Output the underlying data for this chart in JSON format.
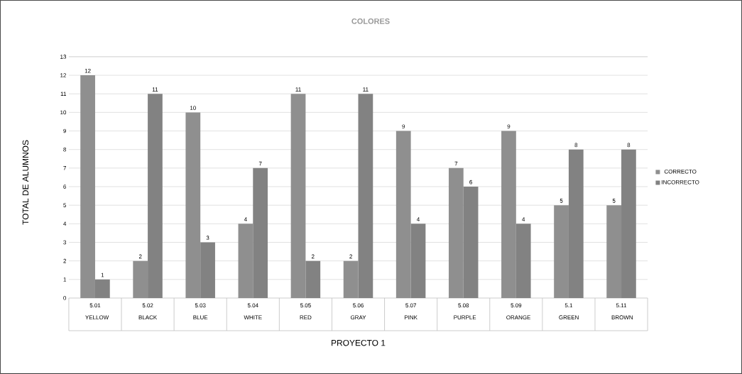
{
  "chart_data": {
    "type": "bar",
    "title": "COLORES",
    "xlabel": "PROYECTO 1",
    "ylabel": "TOTAL DE ALUMNOS",
    "categories": [
      "5.01 YELLOW",
      "5.02 BLACK",
      "5.03 BLUE",
      "5.04 WHITE",
      "5.05 RED",
      "5.06 GRAY",
      "5.07 PINK",
      "5.08 PURPLE",
      "5.09 ORANGE",
      "5.1 GREEN",
      "5.11 BROWN"
    ],
    "series": [
      {
        "name": "CORRECTO",
        "color": "#8f8f8f",
        "values": [
          12,
          2,
          10,
          4,
          11,
          2,
          9,
          7,
          9,
          5,
          5
        ]
      },
      {
        "name": "INCORRECTO",
        "color": "#828282",
        "values": [
          1,
          11,
          3,
          7,
          2,
          11,
          4,
          6,
          4,
          8,
          8
        ]
      }
    ],
    "ylim": [
      0,
      13
    ],
    "yticks": [
      0,
      1,
      2,
      3,
      4,
      5,
      6,
      7,
      8,
      9,
      10,
      11,
      12,
      13
    ],
    "grid": "y",
    "legend": "right",
    "data_labels": true
  }
}
